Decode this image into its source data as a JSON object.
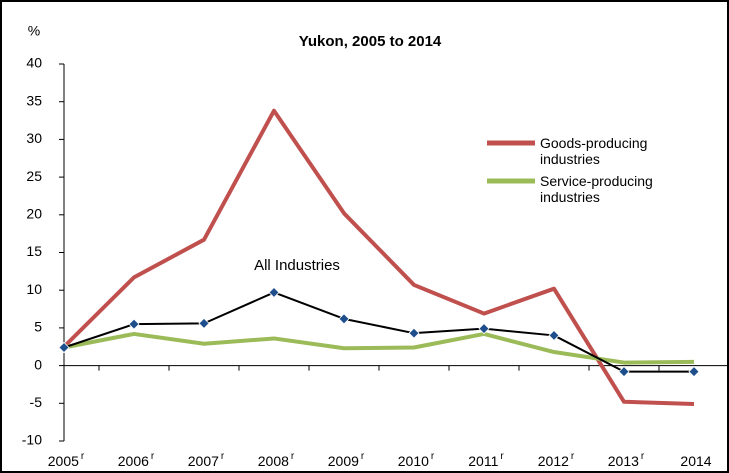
{
  "chart_data": {
    "type": "line",
    "title": "Yukon, 2005 to 2014",
    "y_label": "%",
    "categories": [
      {
        "label": "2005",
        "superscript": "r"
      },
      {
        "label": "2006",
        "superscript": "r"
      },
      {
        "label": "2007",
        "superscript": "r"
      },
      {
        "label": "2008",
        "superscript": "r"
      },
      {
        "label": "2009",
        "superscript": "r"
      },
      {
        "label": "2010",
        "superscript": "r"
      },
      {
        "label": "2011",
        "superscript": "r"
      },
      {
        "label": "2012",
        "superscript": "r"
      },
      {
        "label": "2013",
        "superscript": "r"
      },
      {
        "label": "2014"
      }
    ],
    "series": [
      {
        "name": "Goods-producing industries",
        "color": "#c0504d",
        "width": 4,
        "values": [
          2.5,
          11.7,
          16.7,
          33.8,
          20.2,
          10.7,
          6.9,
          10.2,
          -4.8,
          -5.1
        ]
      },
      {
        "name": "Service-producing industries",
        "color": "#9bbb59",
        "width": 4,
        "values": [
          2.4,
          4.2,
          2.9,
          3.6,
          2.3,
          2.4,
          4.2,
          1.8,
          0.4,
          0.5
        ]
      },
      {
        "color": "#000000",
        "width": 2,
        "marker": "diamond",
        "marker_color": "#1f4e8c",
        "values": [
          2.4,
          5.5,
          5.6,
          9.7,
          6.2,
          4.3,
          4.9,
          4.0,
          -0.8,
          -0.8
        ]
      }
    ],
    "annotations": [
      {
        "text": "All Industries",
        "series": 2
      }
    ],
    "ylim": [
      -10,
      40
    ],
    "yticks": [
      -10,
      -5,
      0,
      5,
      10,
      15,
      20,
      25,
      30,
      35,
      40
    ]
  }
}
